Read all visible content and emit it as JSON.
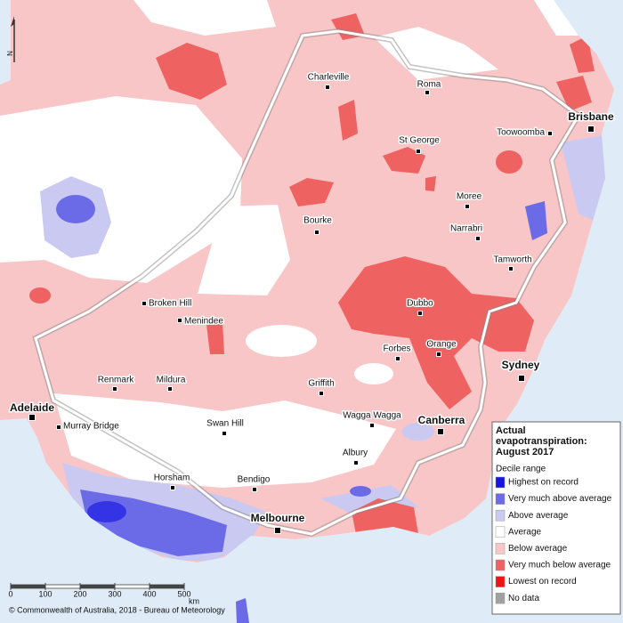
{
  "map": {
    "north": "N",
    "cities": [
      "Charleville",
      "Roma",
      "Brisbane",
      "Toowoomba",
      "St George",
      "Moree",
      "Bourke",
      "Narrabri",
      "Tamworth",
      "Broken Hill",
      "Menindee",
      "Dubbo",
      "Orange",
      "Forbes",
      "Sydney",
      "Renmark",
      "Mildura",
      "Griffith",
      "Adelaide",
      "Murray Bridge",
      "Swan Hill",
      "Wagga Wagga",
      "Canberra",
      "Albury",
      "Horsham",
      "Bendigo",
      "Melbourne"
    ],
    "legend": {
      "title_lines": [
        "Actual",
        "evapotranspiration:",
        "August 2017"
      ],
      "subtitle": "Decile range",
      "items": [
        {
          "label": "Highest on record",
          "color": "#1414e6"
        },
        {
          "label": "Very much above average",
          "color": "#6b6be8"
        },
        {
          "label": "Above average",
          "color": "#c9c9f2"
        },
        {
          "label": "Average",
          "color": "#ffffff"
        },
        {
          "label": "Below average",
          "color": "#f8c6c6"
        },
        {
          "label": "Very much below average",
          "color": "#ef6262"
        },
        {
          "label": "Lowest on record",
          "color": "#f01414"
        },
        {
          "label": "No data",
          "color": "#a0a0a0"
        }
      ]
    },
    "scale": {
      "ticks": [
        0,
        100,
        200,
        300,
        400,
        500
      ],
      "unit": "km"
    },
    "credit": "© Commonwealth of Australia, 2018 - Bureau of Meteorology"
  }
}
